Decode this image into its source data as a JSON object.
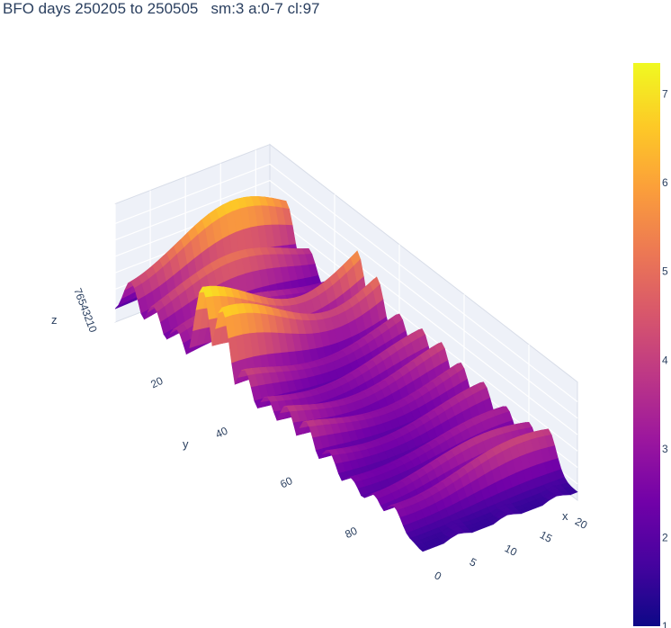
{
  "chart_data": {
    "type": "surface",
    "title": "BFO days 250205 to 250505   sm:3 a:0-7 cl:97",
    "x": {
      "label": "x",
      "range": [
        0,
        22
      ],
      "ticks": [
        0,
        5,
        10,
        15,
        20
      ]
    },
    "y": {
      "label": "y",
      "range": [
        0,
        95
      ],
      "ticks": [
        20,
        40,
        60,
        80
      ]
    },
    "z": {
      "label": "z",
      "range": [
        1,
        7.3
      ],
      "ticks": [
        0,
        1,
        2,
        3,
        4,
        5,
        6,
        7
      ]
    },
    "colorscale": "plasma",
    "colorbar": {
      "range": [
        1,
        7.35
      ],
      "ticks": [
        1,
        2,
        3,
        4,
        5,
        6,
        7
      ]
    },
    "ridges": [
      {
        "y": 5,
        "peak": 6.8
      },
      {
        "y": 12,
        "peak": 5.2
      },
      {
        "y": 19,
        "peak": 4.0
      },
      {
        "y": 27,
        "peak": 7.3
      },
      {
        "y": 33,
        "peak": 6.9
      },
      {
        "y": 40,
        "peak": 4.4
      },
      {
        "y": 47,
        "peak": 4.2
      },
      {
        "y": 53,
        "peak": 4.4
      },
      {
        "y": 59,
        "peak": 4.2
      },
      {
        "y": 66,
        "peak": 3.8
      },
      {
        "y": 73,
        "peak": 3.4
      },
      {
        "y": 80,
        "peak": 3.8
      },
      {
        "y": 86,
        "peak": 4.2
      }
    ]
  }
}
